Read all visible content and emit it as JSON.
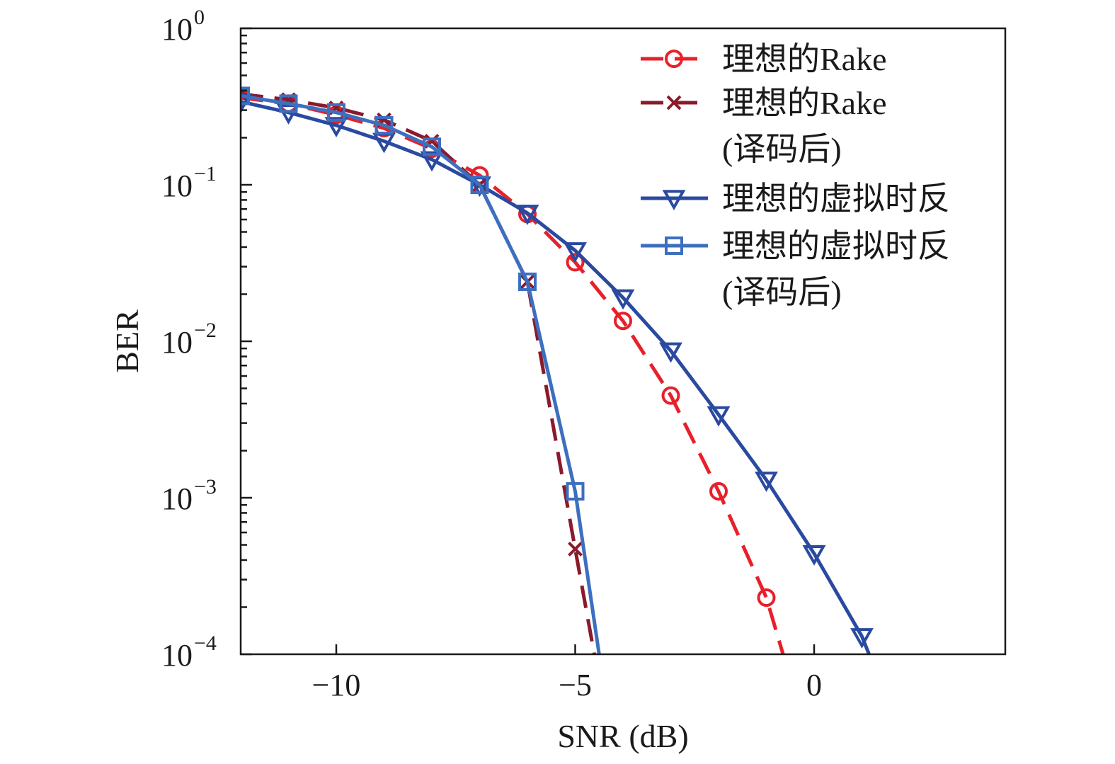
{
  "chart_data": {
    "type": "line",
    "title": "",
    "xlabel": "SNR (dB)",
    "ylabel": "BER",
    "xlim": [
      -12,
      4
    ],
    "ylim": [
      0.0001,
      1
    ],
    "yscale": "log",
    "grid": false,
    "legend_position": "top-right",
    "x_ticks": [
      {
        "value": -10,
        "label": "−10"
      },
      {
        "value": -5,
        "label": "−5"
      },
      {
        "value": 0,
        "label": "0"
      }
    ],
    "y_ticks": [
      {
        "value": 1,
        "base": "10",
        "exp": "0"
      },
      {
        "value": 0.1,
        "base": "10",
        "exp": "−1"
      },
      {
        "value": 0.01,
        "base": "10",
        "exp": "−2"
      },
      {
        "value": 0.001,
        "base": "10",
        "exp": "−3"
      },
      {
        "value": 0.0001,
        "base": "10",
        "exp": "−4"
      }
    ],
    "series": [
      {
        "name": "理想的Rake",
        "color": "#e8202a",
        "dash": "dashed",
        "marker": "circle",
        "x": [
          -12,
          -11,
          -10,
          -9,
          -8,
          -7,
          -6,
          -5,
          -4,
          -3,
          -2,
          -1,
          -0.65
        ],
        "y": [
          0.36,
          0.33,
          0.28,
          0.23,
          0.17,
          0.115,
          0.065,
          0.032,
          0.0135,
          0.0045,
          0.0011,
          0.00023,
          0.0001
        ],
        "marker_count": 12
      },
      {
        "name": "理想的Rake",
        "name_line2": "(译码后)",
        "color": "#8b1a2b",
        "dash": "dashed",
        "marker": "x",
        "x": [
          -12,
          -11,
          -10,
          -9,
          -8,
          -7,
          -6,
          -5,
          -4.6
        ],
        "y": [
          0.38,
          0.35,
          0.31,
          0.26,
          0.19,
          0.1,
          0.024,
          0.00047,
          0.0001
        ],
        "marker_count": 8
      },
      {
        "name": "理想的虚拟时反",
        "color": "#2a4aa0",
        "dash": "solid",
        "marker": "triangle-down",
        "x": [
          -12,
          -11,
          -10,
          -9,
          -8,
          -7,
          -6,
          -5,
          -4,
          -3,
          -2,
          -1,
          0,
          1,
          1.15
        ],
        "y": [
          0.34,
          0.29,
          0.24,
          0.19,
          0.145,
          0.1,
          0.066,
          0.038,
          0.019,
          0.0087,
          0.0034,
          0.0013,
          0.00044,
          0.00013,
          0.0001
        ],
        "marker_count": 14
      },
      {
        "name": "理想的虚拟时反",
        "name_line2": "(译码后)",
        "color": "#3d6fbf",
        "dash": "solid",
        "marker": "square",
        "x": [
          -12,
          -11,
          -10,
          -9,
          -8,
          -7,
          -6,
          -5,
          -4.5
        ],
        "y": [
          0.37,
          0.33,
          0.29,
          0.24,
          0.175,
          0.1,
          0.024,
          0.0011,
          0.0001
        ],
        "marker_count": 8
      }
    ]
  }
}
